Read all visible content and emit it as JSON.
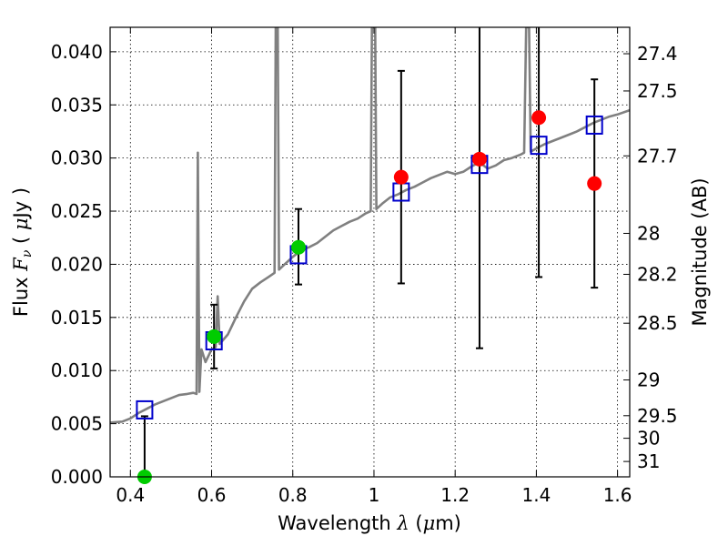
{
  "chart_data": {
    "type": "scatter",
    "xlabel": {
      "prefix": "Wavelength  ",
      "symbol": "λ",
      "units_open": " (",
      "unit_symbol": "μ",
      "unit": "m)"
    },
    "ylabel": {
      "prefix": "Flux  ",
      "symbol": "F",
      "sub": "ν",
      "units_open": "  ( ",
      "unit_symbol": "μ",
      "unit": "Jy )"
    },
    "y2label": "Magnitude (AB)",
    "xlim": [
      0.35,
      1.63
    ],
    "ylim": [
      0.0,
      0.0423
    ],
    "grid": true,
    "x_ticks": [
      {
        "value": 0.4,
        "label": "0.4"
      },
      {
        "value": 0.6,
        "label": "0.6"
      },
      {
        "value": 0.8,
        "label": "0.8"
      },
      {
        "value": 1.0,
        "label": "1"
      },
      {
        "value": 1.2,
        "label": "1.2"
      },
      {
        "value": 1.4,
        "label": "1.4"
      },
      {
        "value": 1.6,
        "label": "1.6"
      }
    ],
    "y_ticks": [
      {
        "value": 0.0,
        "label": "0.000"
      },
      {
        "value": 0.005,
        "label": "0.005"
      },
      {
        "value": 0.01,
        "label": "0.010"
      },
      {
        "value": 0.015,
        "label": "0.015"
      },
      {
        "value": 0.02,
        "label": "0.020"
      },
      {
        "value": 0.025,
        "label": "0.025"
      },
      {
        "value": 0.03,
        "label": "0.030"
      },
      {
        "value": 0.035,
        "label": "0.035"
      },
      {
        "value": 0.04,
        "label": "0.040"
      }
    ],
    "y2_ticks": [
      {
        "value": 27.4,
        "label": "27.4"
      },
      {
        "value": 27.5,
        "label": "27.5"
      },
      {
        "value": 27.7,
        "label": "27.7"
      },
      {
        "value": 28.0,
        "label": "28"
      },
      {
        "value": 28.2,
        "label": "28.2"
      },
      {
        "value": 28.5,
        "label": "28.5"
      },
      {
        "value": 29.0,
        "label": "29"
      },
      {
        "value": 29.5,
        "label": "29.5"
      },
      {
        "value": 30.0,
        "label": "30"
      },
      {
        "value": 31.0,
        "label": "31"
      }
    ],
    "series": [
      {
        "name": "model-sed",
        "kind": "line",
        "color": "#808080",
        "points": [
          [
            0.35,
            0.0051
          ],
          [
            0.38,
            0.0052
          ],
          [
            0.4,
            0.0055
          ],
          [
            0.42,
            0.006
          ],
          [
            0.44,
            0.0064
          ],
          [
            0.46,
            0.0068
          ],
          [
            0.48,
            0.0071
          ],
          [
            0.5,
            0.0074
          ],
          [
            0.52,
            0.0077
          ],
          [
            0.54,
            0.0078
          ],
          [
            0.555,
            0.0079
          ],
          [
            0.563,
            0.0078
          ],
          [
            0.566,
            0.0305
          ],
          [
            0.57,
            0.008
          ],
          [
            0.575,
            0.012
          ],
          [
            0.585,
            0.0108
          ],
          [
            0.6,
            0.012
          ],
          [
            0.61,
            0.0122
          ],
          [
            0.615,
            0.017
          ],
          [
            0.62,
            0.0125
          ],
          [
            0.64,
            0.0134
          ],
          [
            0.66,
            0.015
          ],
          [
            0.68,
            0.0165
          ],
          [
            0.7,
            0.0177
          ],
          [
            0.72,
            0.0183
          ],
          [
            0.74,
            0.0188
          ],
          [
            0.755,
            0.0192
          ],
          [
            0.758,
            0.0423
          ],
          [
            0.763,
            0.0423
          ],
          [
            0.766,
            0.0195
          ],
          [
            0.78,
            0.02
          ],
          [
            0.8,
            0.0207
          ],
          [
            0.82,
            0.0213
          ],
          [
            0.84,
            0.0216
          ],
          [
            0.86,
            0.022
          ],
          [
            0.88,
            0.0226
          ],
          [
            0.9,
            0.0232
          ],
          [
            0.92,
            0.0236
          ],
          [
            0.94,
            0.024
          ],
          [
            0.96,
            0.0243
          ],
          [
            0.98,
            0.0248
          ],
          [
            0.992,
            0.025
          ],
          [
            0.995,
            0.0423
          ],
          [
            1.003,
            0.0423
          ],
          [
            1.006,
            0.0252
          ],
          [
            1.02,
            0.0257
          ],
          [
            1.04,
            0.0263
          ],
          [
            1.06,
            0.0266
          ],
          [
            1.08,
            0.027
          ],
          [
            1.1,
            0.0273
          ],
          [
            1.12,
            0.0277
          ],
          [
            1.14,
            0.0281
          ],
          [
            1.16,
            0.0284
          ],
          [
            1.18,
            0.0287
          ],
          [
            1.2,
            0.0285
          ],
          [
            1.22,
            0.0287
          ],
          [
            1.24,
            0.0292
          ],
          [
            1.26,
            0.0296
          ],
          [
            1.28,
            0.029
          ],
          [
            1.3,
            0.0293
          ],
          [
            1.32,
            0.0298
          ],
          [
            1.34,
            0.03
          ],
          [
            1.36,
            0.0303
          ],
          [
            1.37,
            0.0305
          ],
          [
            1.375,
            0.0423
          ],
          [
            1.382,
            0.0423
          ],
          [
            1.386,
            0.0306
          ],
          [
            1.4,
            0.0309
          ],
          [
            1.42,
            0.0313
          ],
          [
            1.44,
            0.0316
          ],
          [
            1.46,
            0.0319
          ],
          [
            1.48,
            0.0322
          ],
          [
            1.5,
            0.0325
          ],
          [
            1.52,
            0.0329
          ],
          [
            1.54,
            0.0333
          ],
          [
            1.56,
            0.0336
          ],
          [
            1.58,
            0.0339
          ],
          [
            1.6,
            0.0341
          ],
          [
            1.63,
            0.0345
          ]
        ]
      },
      {
        "name": "synthetic-photometry",
        "kind": "open-square",
        "color": "#0000cc",
        "points": [
          [
            0.435,
            0.0063
          ],
          [
            0.606,
            0.0128
          ],
          [
            0.814,
            0.0209
          ],
          [
            1.067,
            0.0268
          ],
          [
            1.26,
            0.0294
          ],
          [
            1.406,
            0.0312
          ],
          [
            1.543,
            0.0331
          ]
        ]
      },
      {
        "name": "observed-optical",
        "kind": "filled-circle",
        "color": "#00cc00",
        "points": [
          [
            0.435,
            0.0
          ],
          [
            0.606,
            0.0132
          ],
          [
            0.814,
            0.0216
          ]
        ],
        "errors": [
          [
            0.435,
            0.0,
            0.0057
          ],
          [
            0.606,
            0.0102,
            0.0162
          ],
          [
            0.814,
            0.0181,
            0.0252
          ]
        ]
      },
      {
        "name": "observed-infrared",
        "kind": "filled-circle",
        "color": "#ff0000",
        "points": [
          [
            1.067,
            0.0282
          ],
          [
            1.26,
            0.0299
          ],
          [
            1.406,
            0.0338
          ],
          [
            1.543,
            0.0276
          ]
        ],
        "errors": [
          [
            1.067,
            0.0182,
            0.0382
          ],
          [
            1.26,
            0.0121,
            0.0423
          ],
          [
            1.406,
            0.0188,
            0.0423
          ],
          [
            1.543,
            0.0178,
            0.0374
          ]
        ]
      }
    ]
  }
}
